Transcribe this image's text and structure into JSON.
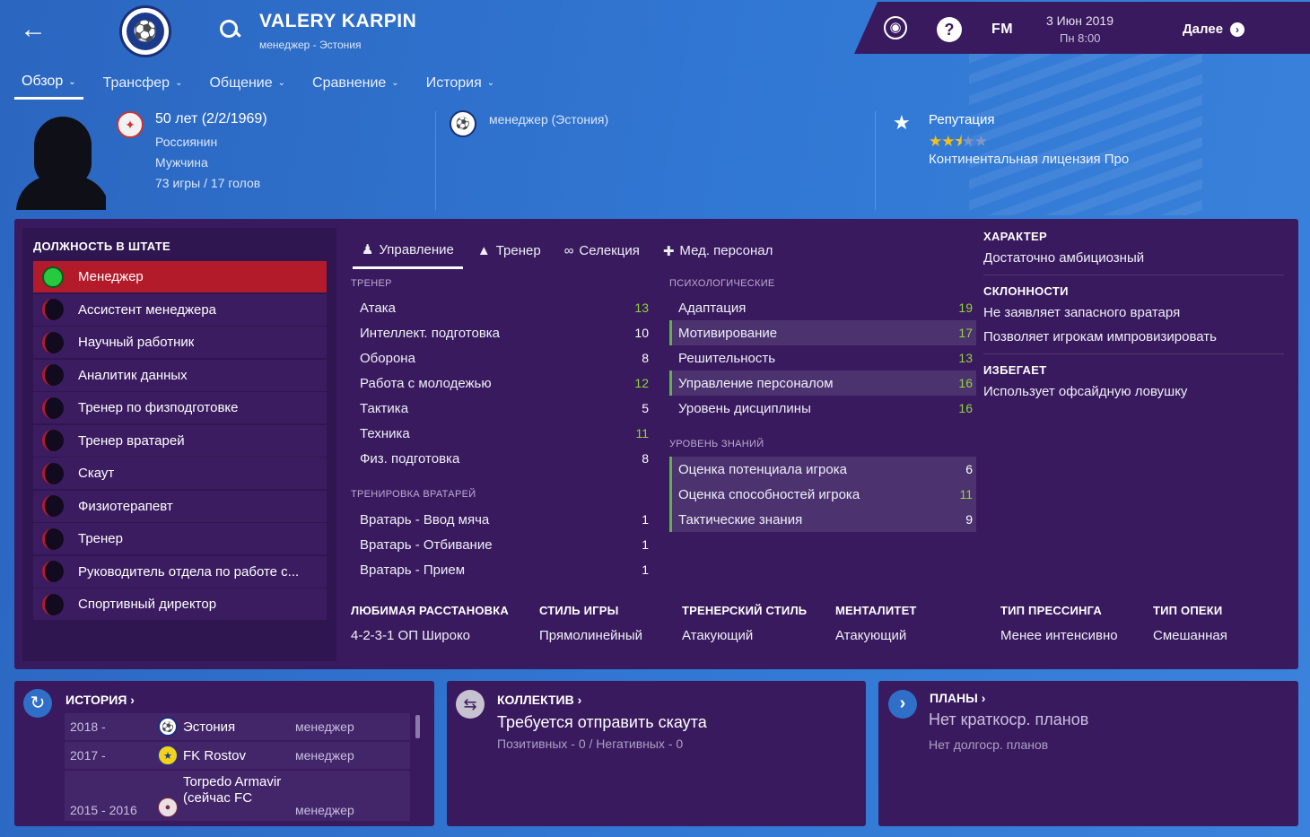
{
  "header": {
    "name": "VALERY KARPIN",
    "role": "менеджер - Эстония",
    "date": "3 Июн 2019",
    "time": "Пн 8:00",
    "next_label": "Далее",
    "fm_label": "FM"
  },
  "nav": [
    {
      "label": "Обзор"
    },
    {
      "label": "Трансфер"
    },
    {
      "label": "Общение"
    },
    {
      "label": "Сравнение"
    },
    {
      "label": "История"
    }
  ],
  "profile": {
    "age": "50 лет (2/2/1969)",
    "nationality": "Россиянин",
    "gender": "Мужчина",
    "caps": "73 игры / 17 голов",
    "job": "менеджер (Эстония)",
    "reputation_label": "Репутация",
    "reputation_stars": 2.5,
    "licence": "Континентальная лицензия Про"
  },
  "staff": {
    "title": "ДОЛЖНОСТЬ В ШТАТЕ",
    "items": [
      {
        "label": "Менеджер",
        "active": true
      },
      {
        "label": "Ассистент менеджера"
      },
      {
        "label": "Научный работник"
      },
      {
        "label": "Аналитик данных"
      },
      {
        "label": "Тренер по физподготовке"
      },
      {
        "label": "Тренер вратарей"
      },
      {
        "label": "Скаут"
      },
      {
        "label": "Физиотерапевт"
      },
      {
        "label": "Тренер"
      },
      {
        "label": "Руководитель отдела по работе с..."
      },
      {
        "label": "Спортивный директор"
      }
    ]
  },
  "tabs": [
    {
      "label": "Управление"
    },
    {
      "label": "Тренер"
    },
    {
      "label": "Селекция"
    },
    {
      "label": "Мед. персонал"
    }
  ],
  "coach": {
    "title": "ТРЕНЕР",
    "items": [
      {
        "label": "Атака",
        "value": "13"
      },
      {
        "label": "Интеллект. подготовка",
        "value": "10"
      },
      {
        "label": "Оборона",
        "value": "8"
      },
      {
        "label": "Работа с молодежью",
        "value": "12"
      },
      {
        "label": "Тактика",
        "value": "5"
      },
      {
        "label": "Техника",
        "value": "11"
      },
      {
        "label": "Физ. подготовка",
        "value": "8"
      }
    ]
  },
  "gk": {
    "title": "ТРЕНИРОВКА ВРАТАРЕЙ",
    "items": [
      {
        "label": "Вратарь - Ввод мяча",
        "value": "1"
      },
      {
        "label": "Вратарь - Отбивание",
        "value": "1"
      },
      {
        "label": "Вратарь - Прием",
        "value": "1"
      }
    ]
  },
  "mental": {
    "title": "ПСИХОЛОГИЧЕСКИЕ",
    "items": [
      {
        "label": "Адаптация",
        "value": "19"
      },
      {
        "label": "Мотивирование",
        "value": "17"
      },
      {
        "label": "Решительность",
        "value": "13"
      },
      {
        "label": "Управление персоналом",
        "value": "16"
      },
      {
        "label": "Уровень дисциплины",
        "value": "16"
      }
    ]
  },
  "knowledge": {
    "title": "УРОВЕНЬ ЗНАНИЙ",
    "items": [
      {
        "label": "Оценка потенциала игрока",
        "value": "6"
      },
      {
        "label": "Оценка способностей игрока",
        "value": "11"
      },
      {
        "label": "Тактические знания",
        "value": "9"
      }
    ]
  },
  "character": {
    "title": "ХАРАКТЕР",
    "text": "Достаточно амбициозный",
    "tend_title": "СКЛОННОСТИ",
    "tend_1": "Не заявляет запасного вратаря",
    "tend_2": "Позволяет игрокам импровизировать",
    "avoid_title": "ИЗБЕГАЕТ",
    "avoid_1": "Использует офсайдную ловушку"
  },
  "tactics": [
    {
      "label": "ЛЮБИМАЯ РАССТАНОВКА",
      "value": "4-2-3-1 ОП Широко"
    },
    {
      "label": "СТИЛЬ ИГРЫ",
      "value": "Прямолинейный"
    },
    {
      "label": "ТРЕНЕРСКИЙ СТИЛЬ",
      "value": "Атакующий"
    },
    {
      "label": "МЕНТАЛИТЕТ",
      "value": "Атакующий"
    },
    {
      "label": "ТИП ПРЕССИНГА",
      "value": "Менее интенсивно"
    },
    {
      "label": "ТИП ОПЕКИ",
      "value": "Смешанная"
    }
  ],
  "history": {
    "title": "ИСТОРИЯ",
    "rows": [
      {
        "years": "2018 -",
        "club": "Эстония",
        "role": "менеджер"
      },
      {
        "years": "2017 -",
        "club": "FK Rostov",
        "role": "менеджер"
      },
      {
        "years": "2015 - 2016",
        "club": "Torpedo Armavir (сейчас FC",
        "role": "менеджер"
      }
    ]
  },
  "collective": {
    "title": "КОЛЛЕКТИВ",
    "main": "Требуется отправить скаута",
    "sub": "Позитивных - 0  /  Негативных - 0"
  },
  "plans": {
    "title": "ПЛАНЫ",
    "main": "Нет краткоср. планов",
    "sub": "Нет долгоср. планов"
  },
  "colors": {
    "panel": "#3a1a5e",
    "accent_red": "#b31b2b",
    "good_value": "#8fd43d",
    "background": "#2f6fc8"
  }
}
